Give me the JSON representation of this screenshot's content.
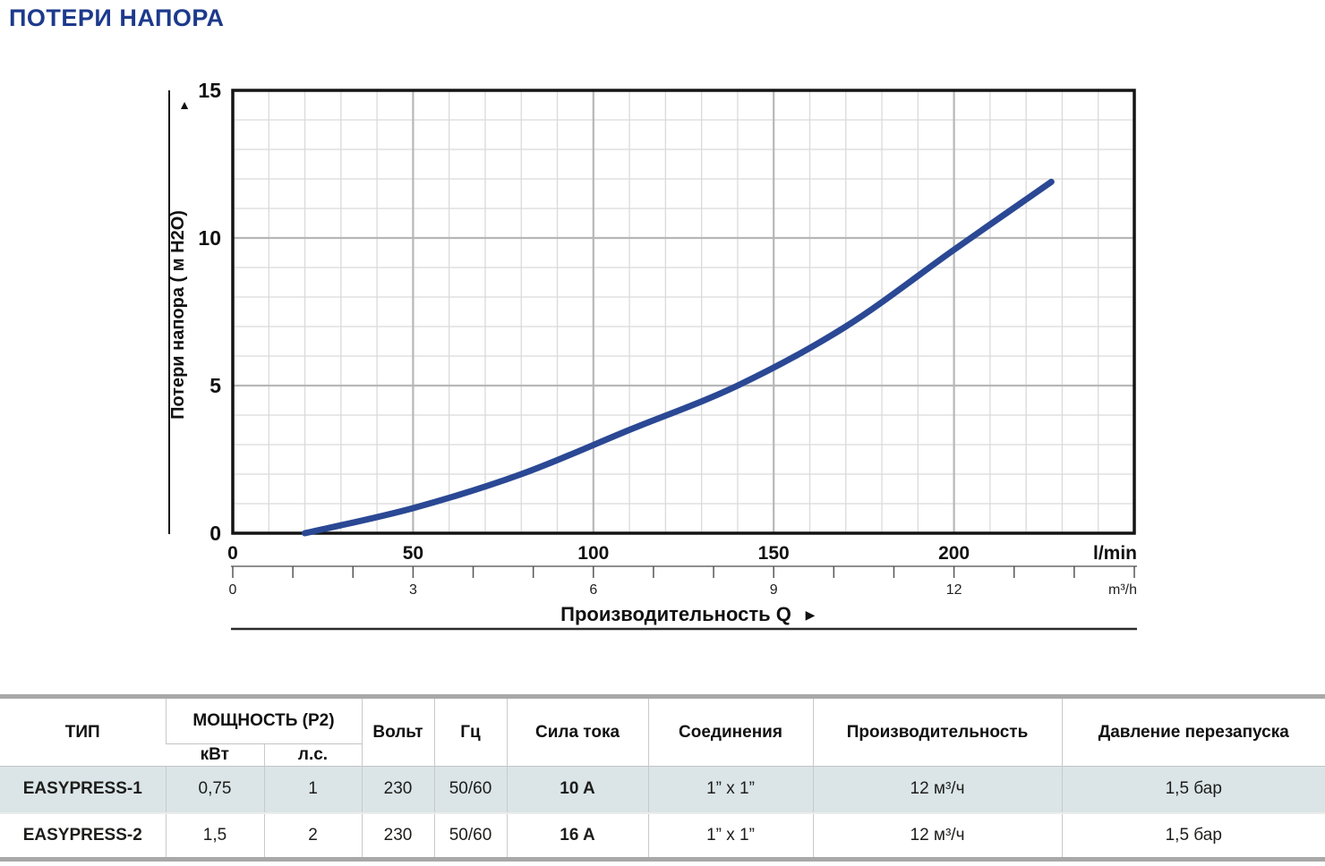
{
  "page": {
    "title": "ПОТЕРИ НАПОРА"
  },
  "icons": {
    "up_arrow": "▲",
    "right_arrow": "▶"
  },
  "chart_data": {
    "type": "line",
    "title": "ПОТЕРИ НАПОРА",
    "xlabel": "Производительность Q",
    "ylabel": "Потери напора ( м H2O)",
    "x_axis_units": {
      "primary": "l/min",
      "secondary": "m³/h"
    },
    "xlim_lmin": [
      0,
      250
    ],
    "ylim": [
      0,
      15
    ],
    "x_ticks_lmin": [
      0,
      50,
      100,
      150,
      200
    ],
    "x_ticks_m3h": [
      0,
      3,
      6,
      9,
      12
    ],
    "y_ticks": [
      0,
      5,
      10,
      15
    ],
    "grid": {
      "minor_x_step_lmin": 10,
      "minor_y_step": 1,
      "major_x_lmin": [
        50,
        100,
        150,
        200
      ],
      "major_y": [
        5,
        10
      ],
      "grid_on": true
    },
    "legend": "none",
    "series": [
      {
        "name": "head_loss_curve",
        "color": "#2a4894",
        "x_lmin": [
          20,
          50,
          80,
          110,
          140,
          170,
          200,
          227
        ],
        "y_m": [
          0,
          0.85,
          2.0,
          3.5,
          5.0,
          7.0,
          9.6,
          11.9
        ]
      }
    ]
  },
  "table": {
    "headers": {
      "type": "ТИП",
      "power": "МОЩНОСТЬ (P2)",
      "power_kw": "кВт",
      "power_hp": "л.с.",
      "volt": "Вольт",
      "hz": "Гц",
      "current": "Сила тока",
      "connections": "Соединения",
      "capacity": "Производительность",
      "restart_pressure": "Давление перезапуска"
    },
    "rows": [
      {
        "type": "EASYPRESS-1",
        "kw": "0,75",
        "hp": "1",
        "volt": "230",
        "hz": "50/60",
        "current": "10 A",
        "connections": "1” x 1”",
        "capacity": "12 м³/ч",
        "restart_pressure": "1,5 бар"
      },
      {
        "type": "EASYPRESS-2",
        "kw": "1,5",
        "hp": "2",
        "volt": "230",
        "hz": "50/60",
        "current": "16 A",
        "connections": "1” x 1”",
        "capacity": "12 м³/ч",
        "restart_pressure": "1,5 бар"
      }
    ]
  }
}
